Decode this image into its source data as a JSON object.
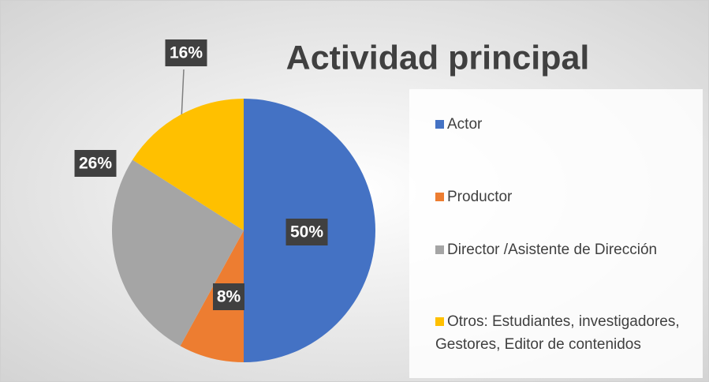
{
  "chart_data": {
    "type": "pie",
    "title": "Actividad principal",
    "categories": [
      "Actor",
      "Productor",
      "Director /Asistente de Dirección",
      "Otros: Estudiantes, investigadores, Gestores, Editor de contenidos"
    ],
    "values": [
      50,
      8,
      26,
      16
    ],
    "value_labels": [
      "50%",
      "8%",
      "26%",
      "16%"
    ],
    "colors": [
      "#4472c4",
      "#ed7d31",
      "#a5a5a5",
      "#ffc000"
    ],
    "legend": "right"
  }
}
